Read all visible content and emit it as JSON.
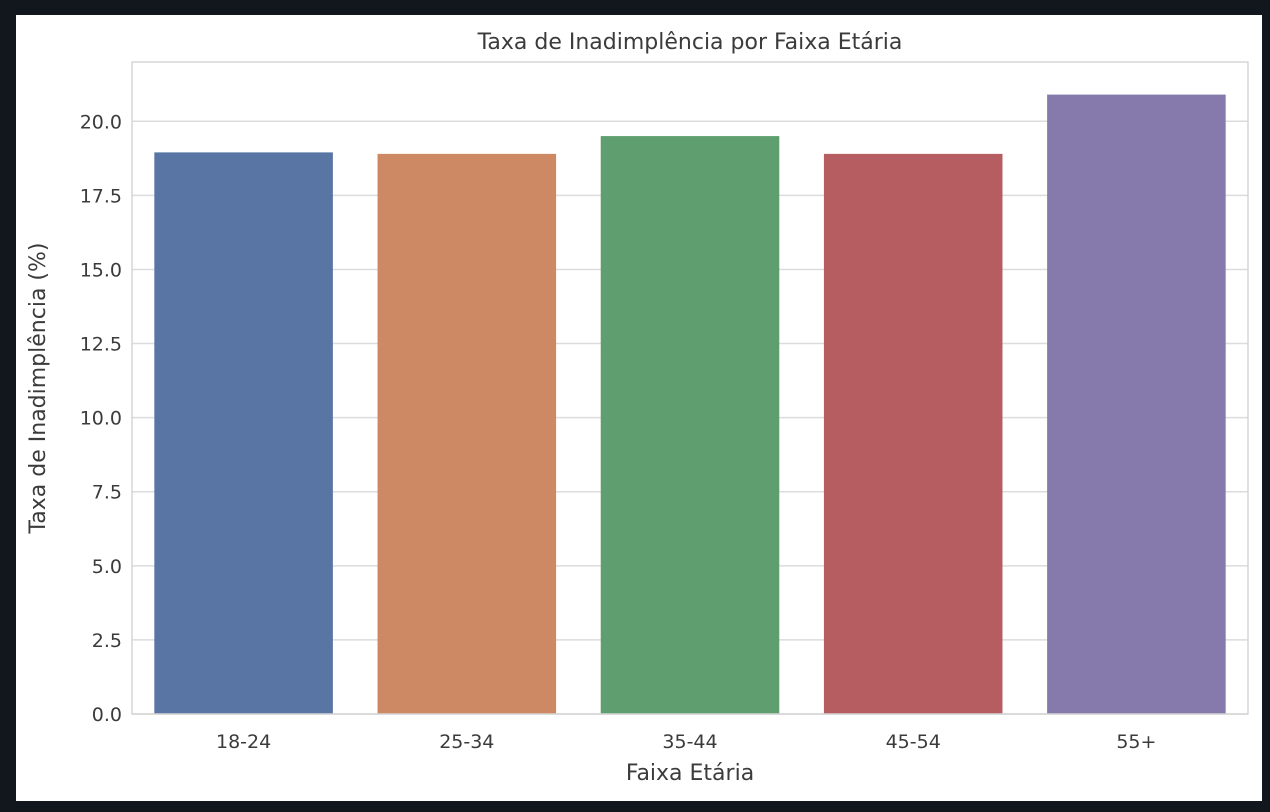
{
  "chart_data": {
    "type": "bar",
    "title": "Taxa de Inadimplência por Faixa Etária",
    "xlabel": "Faixa Etária",
    "ylabel": "Taxa de Inadimplência (%)",
    "categories": [
      "18-24",
      "25-34",
      "35-44",
      "45-54",
      "55+"
    ],
    "values": [
      18.95,
      18.9,
      19.5,
      18.9,
      20.9
    ],
    "colors": [
      "#5975a4",
      "#cc8963",
      "#5f9e6e",
      "#b55d60",
      "#857aab"
    ],
    "ylim": [
      0,
      22
    ],
    "yticks": [
      "0.0",
      "2.5",
      "5.0",
      "7.5",
      "10.0",
      "12.5",
      "15.0",
      "17.5",
      "20.0"
    ],
    "grid": true,
    "legend": "none"
  }
}
